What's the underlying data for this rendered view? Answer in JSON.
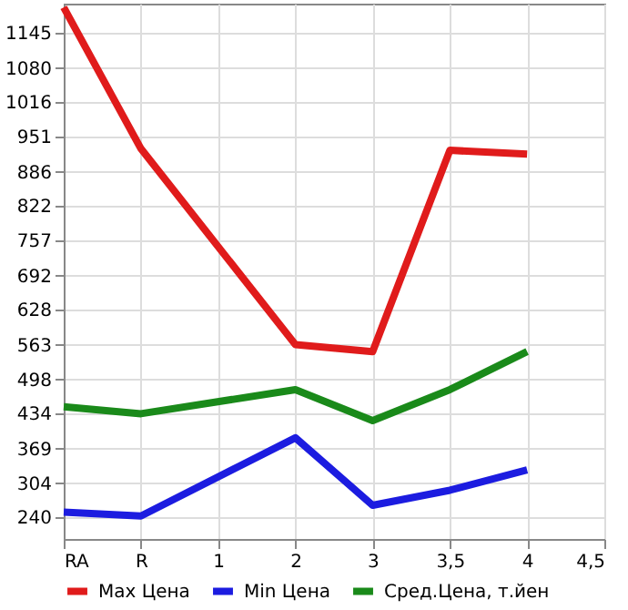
{
  "chart_data": {
    "type": "line",
    "categories": [
      "RA",
      "R",
      "1",
      "2",
      "3",
      "3,5",
      "4",
      "4,5"
    ],
    "series": [
      {
        "name": "Max Цена",
        "color": "#e01b1b",
        "values": [
          1193,
          929,
          null,
          563,
          550,
          926,
          919,
          null
        ]
      },
      {
        "name": "Min Цена",
        "color": "#1c1ce0",
        "values": [
          250,
          243,
          null,
          389,
          263,
          291,
          329,
          null
        ]
      },
      {
        "name": "Сред.Цена, т.йен",
        "color": "#1a8a1a",
        "values": [
          447,
          434,
          null,
          479,
          421,
          479,
          550,
          null
        ]
      }
    ],
    "ylim": [
      200,
      1200
    ],
    "yticks": [
      240,
      304,
      369,
      434,
      498,
      563,
      628,
      692,
      757,
      822,
      886,
      951,
      1016,
      1080,
      1145
    ],
    "grid": true,
    "legend": "bottom",
    "marker": "none",
    "line_style": "solid"
  }
}
